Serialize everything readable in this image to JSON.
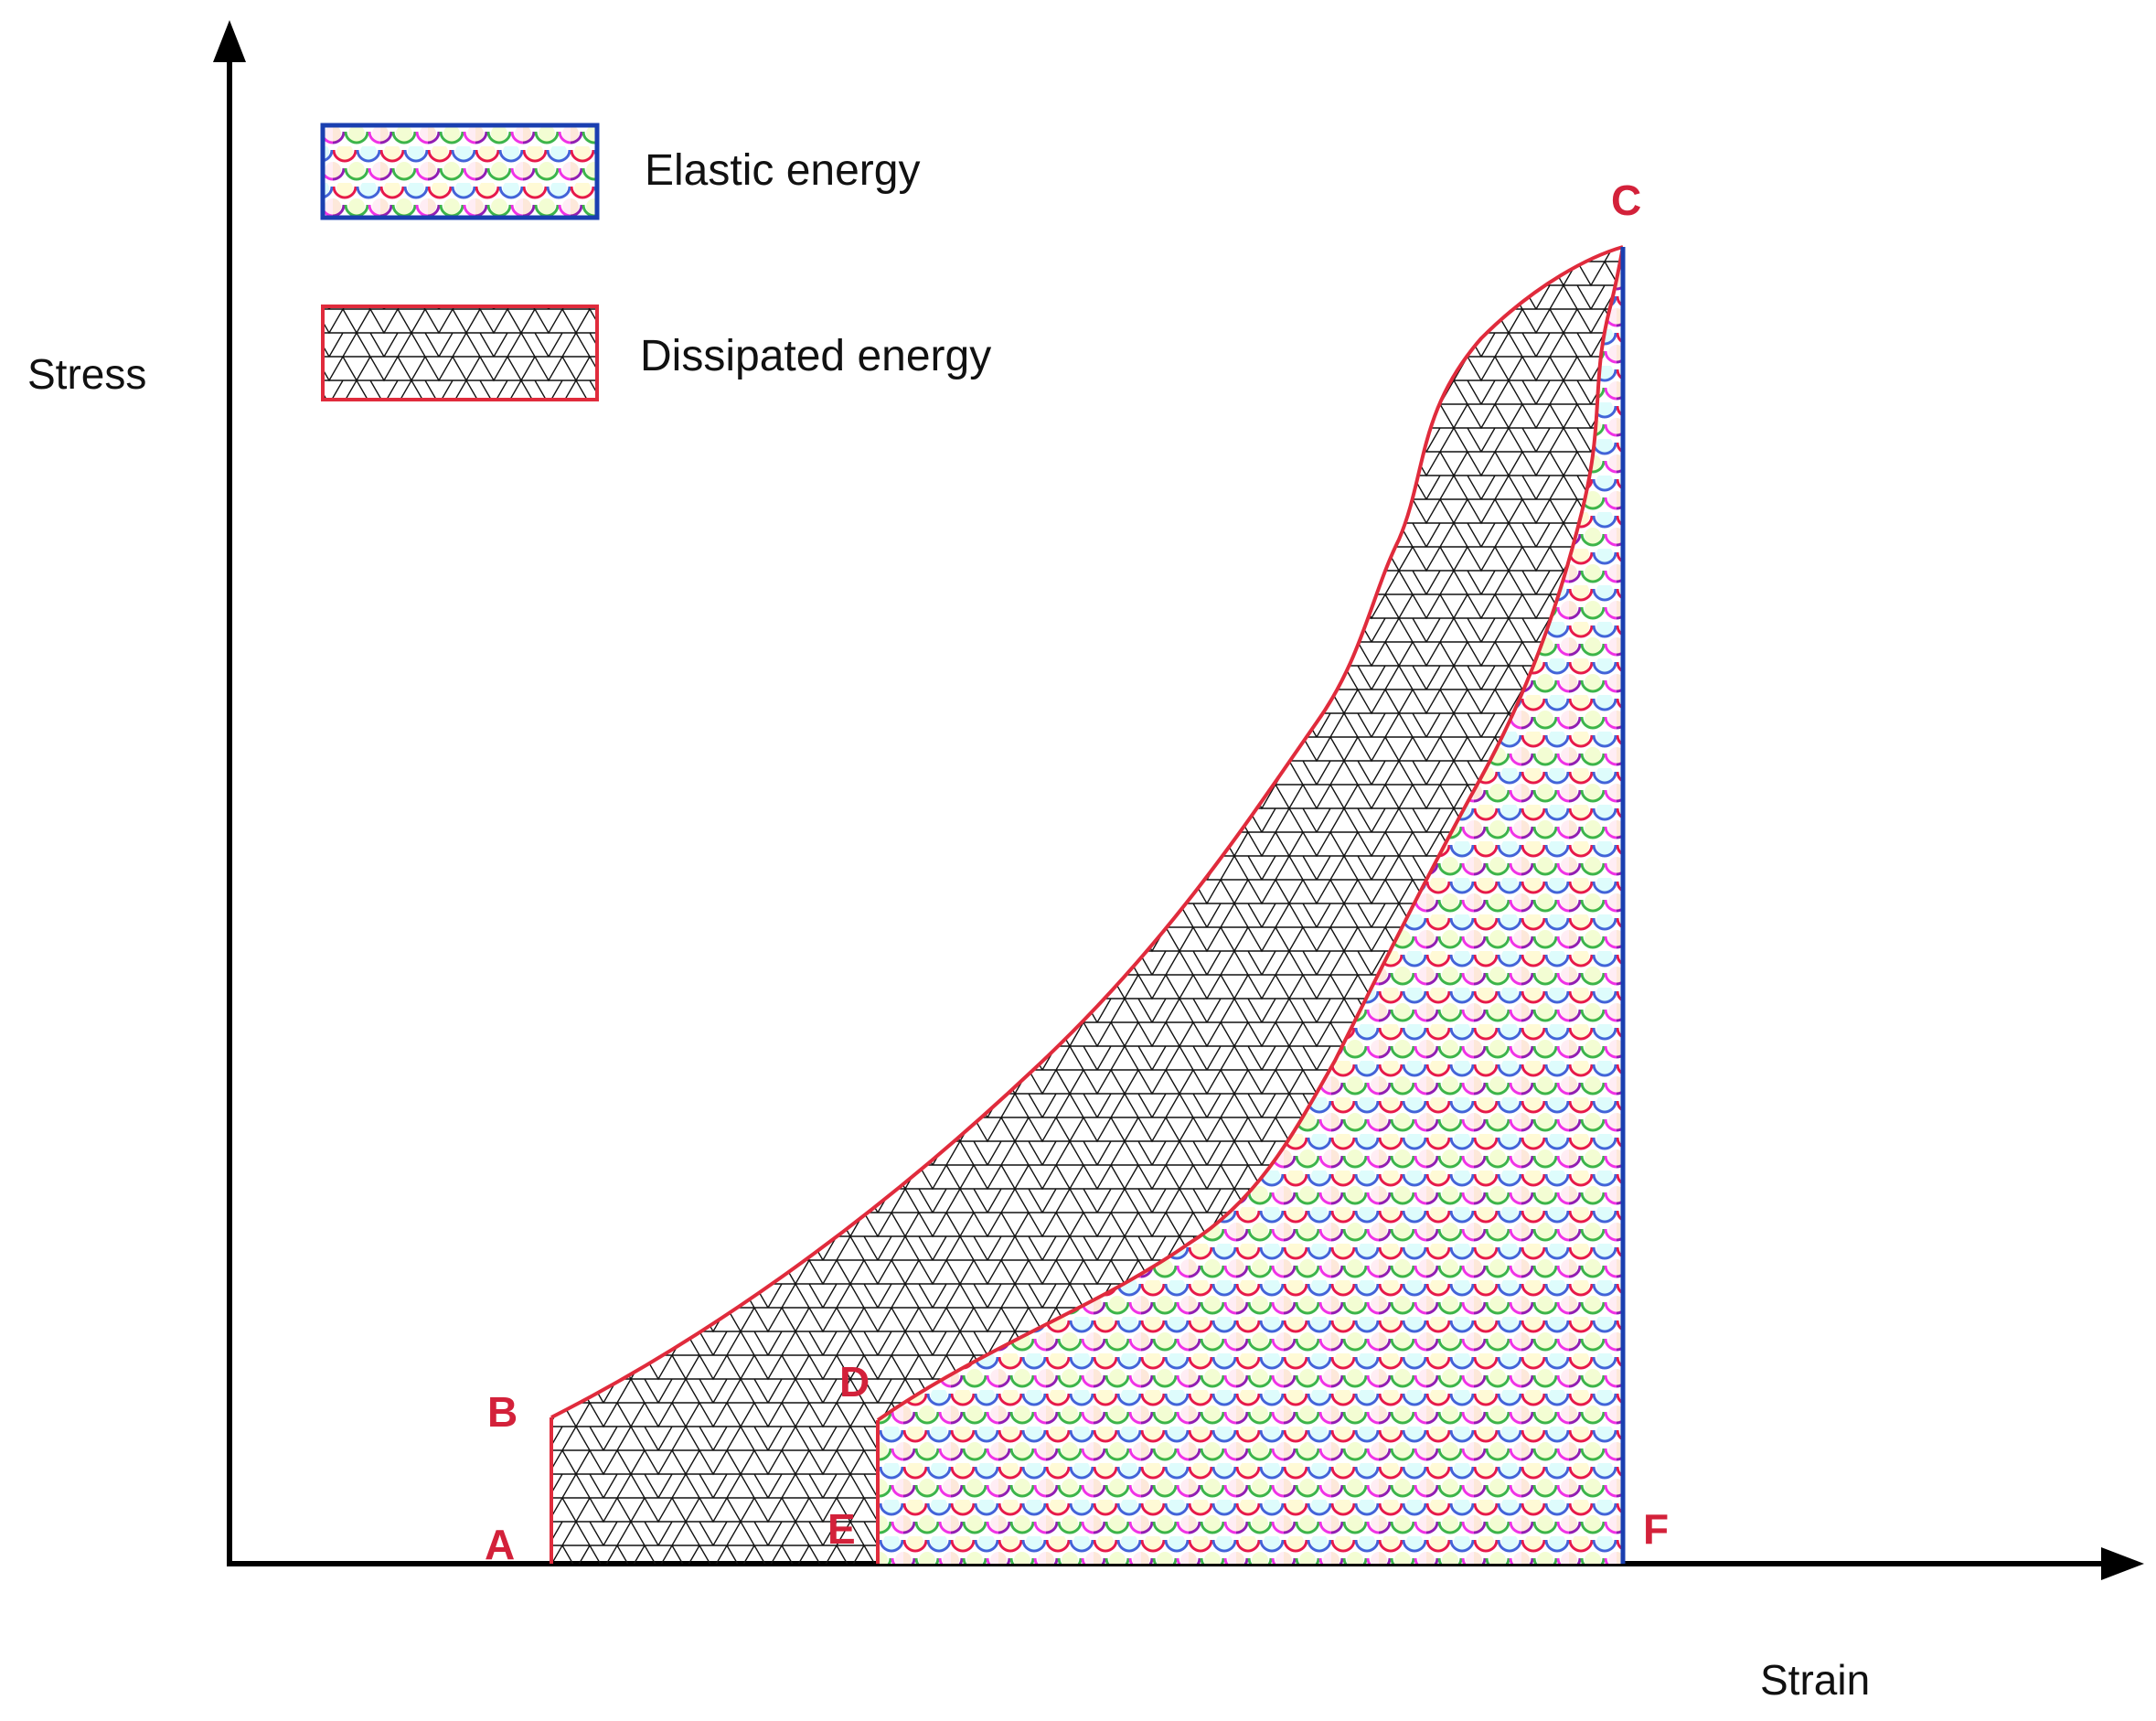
{
  "axes": {
    "y_label": "Stress",
    "x_label": "Strain"
  },
  "legend": [
    {
      "label": "Elastic energy",
      "pattern": "scales",
      "border_color": "#1a3fb0"
    },
    {
      "label": "Dissipated energy",
      "pattern": "triangles",
      "border_color": "#e02b3c"
    }
  ],
  "points": {
    "A": "A",
    "B": "B",
    "C": "C",
    "D": "D",
    "E": "E",
    "F": "F"
  },
  "colors": {
    "curve": "#e02b3c",
    "elastic_border": "#1a3fb0",
    "axis": "#000000",
    "point_label": "#d3213a",
    "mesh": "#111111",
    "scale_palette": [
      "#e6194b",
      "#3cb44b",
      "#ffe119",
      "#4363d8",
      "#f58231",
      "#911eb4",
      "#46f0f0",
      "#f032e6",
      "#bcf60c",
      "#000000",
      "#008080",
      "#1a237e",
      "#ff9ec4"
    ]
  }
}
